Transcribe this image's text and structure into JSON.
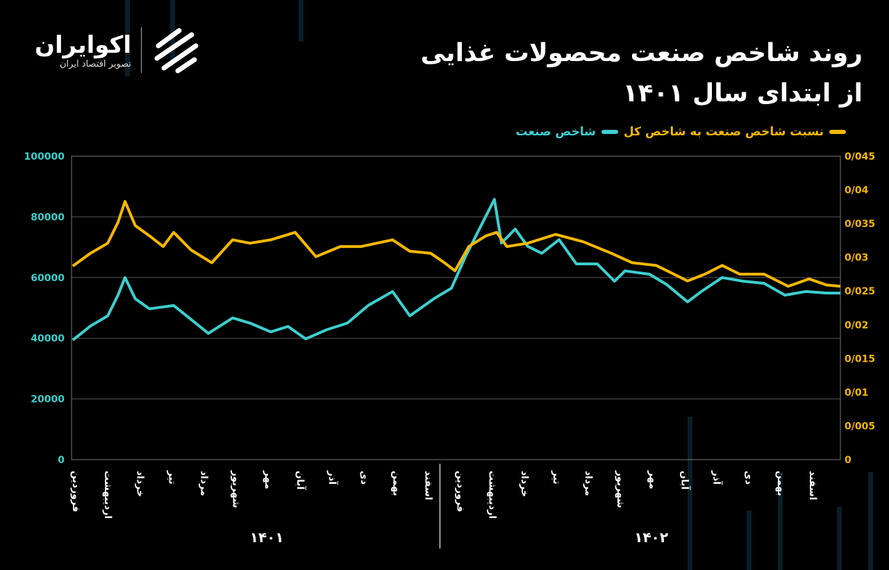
{
  "title": {
    "line1": "روند شاخص صنعت محصولات غذایی",
    "line2": "از ابتدای سال ۱۴۰۱"
  },
  "logo": {
    "name": "اکوایران",
    "subtitle": "تصویر اقتصاد ایران"
  },
  "colors": {
    "teal": "#3ccfcf",
    "orange": "#f5b800",
    "background": "#000000"
  },
  "chart_data": {
    "type": "line",
    "title": "روند شاخص صنعت محصولات غذایی از ابتدای سال ۱۴۰۱",
    "legend": [
      {
        "name": "نسبت شاخص صنعت به شاخص کل",
        "color": "#f5b800",
        "axis": "right"
      },
      {
        "name": "شاخص صنعت",
        "color": "#3ccfcf",
        "axis": "left"
      }
    ],
    "legend_position": "top-right",
    "x_unit": "months since start of 1401",
    "xlim": [
      0,
      24
    ],
    "left_axis": {
      "ylim": [
        0,
        100000
      ],
      "ticks": [
        "0",
        "20000",
        "40000",
        "60000",
        "80000",
        "100000"
      ]
    },
    "right_axis": {
      "ylim": [
        0,
        0.045
      ],
      "ticks": [
        "0",
        "0/005",
        "0/01",
        "0/015",
        "0/02",
        "0/025",
        "0/03",
        "0/035",
        "0/04",
        "0/045"
      ]
    },
    "grid": true,
    "months": [
      "فروردین",
      "اردیبهشت",
      "خرداد",
      "تیر",
      "مرداد",
      "شهریور",
      "مهر",
      "آبان",
      "آذر",
      "دی",
      "بهمن",
      "اسفند"
    ],
    "years": [
      "۱۴۰۱",
      "۱۴۰۲"
    ],
    "series": [
      {
        "name": "شاخص صنعت",
        "axis": "left",
        "x": [
          0.04,
          0.59,
          1.13,
          1.45,
          1.67,
          1.99,
          2.43,
          3.19,
          3.73,
          4.27,
          5.03,
          5.57,
          6.22,
          6.76,
          7.31,
          7.96,
          8.61,
          9.26,
          10.02,
          10.56,
          11.32,
          11.86,
          12.29,
          12.73,
          13.2,
          13.42,
          13.85,
          14.24,
          14.68,
          15.22,
          15.76,
          16.41,
          16.95,
          17.28,
          18.04,
          18.58,
          19.23,
          19.66,
          20.31,
          20.96,
          21.62,
          22.27,
          22.92,
          23.57,
          24
        ],
        "y": [
          39400,
          44000,
          47400,
          54200,
          60000,
          53000,
          49700,
          50800,
          46200,
          41600,
          46700,
          45000,
          42100,
          43900,
          39800,
          42800,
          45000,
          50800,
          55400,
          47400,
          53100,
          56500,
          66800,
          76000,
          85800,
          71400,
          76000,
          70300,
          68000,
          72500,
          64500,
          64500,
          58800,
          62200,
          61100,
          57700,
          52000,
          55400,
          60000,
          58800,
          58100,
          54200,
          55400,
          54900,
          54900
        ]
      },
      {
        "name": "نسبت شاخص صنعت به شاخص کل",
        "axis": "right",
        "x": [
          0.04,
          0.59,
          1.13,
          1.45,
          1.67,
          1.99,
          2.43,
          2.86,
          3.19,
          3.73,
          4.38,
          5.03,
          5.57,
          6.22,
          6.98,
          7.63,
          8.39,
          9.04,
          10.02,
          10.56,
          11.21,
          11.64,
          11.97,
          12.4,
          12.94,
          13.27,
          13.59,
          14.24,
          15.11,
          15.98,
          16.85,
          17.5,
          18.25,
          19.23,
          19.77,
          20.31,
          20.86,
          21.62,
          22.37,
          23.02,
          23.57,
          24
        ],
        "y": [
          0.0287,
          0.0306,
          0.0321,
          0.0352,
          0.0383,
          0.0347,
          0.0332,
          0.0316,
          0.0337,
          0.0311,
          0.0292,
          0.0326,
          0.0321,
          0.0326,
          0.0337,
          0.0301,
          0.0316,
          0.0316,
          0.0326,
          0.0309,
          0.0306,
          0.0292,
          0.028,
          0.0316,
          0.0332,
          0.0337,
          0.0316,
          0.0321,
          0.0334,
          0.0323,
          0.0306,
          0.0292,
          0.0288,
          0.0265,
          0.0275,
          0.0288,
          0.0275,
          0.0275,
          0.0257,
          0.0268,
          0.0259,
          0.0257
        ]
      }
    ]
  }
}
